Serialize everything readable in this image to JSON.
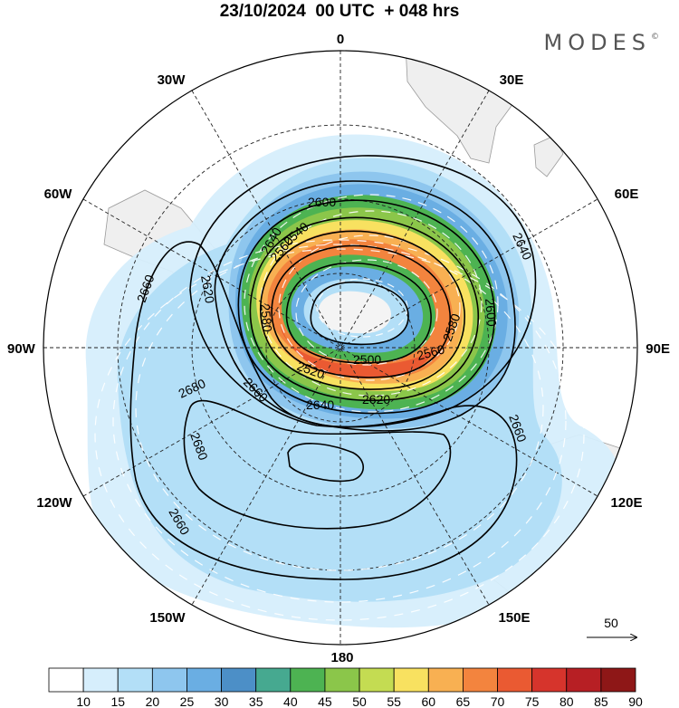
{
  "header": {
    "title": "23/10/2024  00 UTC  + 048 hrs",
    "brand": "MODES",
    "brand_mark": "©"
  },
  "map": {
    "projection": "south-polar-stereographic",
    "longitude_labels": {
      "top": "0",
      "top_right": "30E",
      "right_upper": "60E",
      "right": "90E",
      "right_lower": "120E",
      "bottom_right": "150E",
      "bottom": "180",
      "bottom_left": "150W",
      "left_lower": "120W",
      "left": "90W",
      "left_upper": "60W",
      "top_left": "30W"
    },
    "contour_labels": [
      "2500",
      "2520",
      "2540",
      "2560",
      "2580",
      "2600",
      "2620",
      "2640",
      "2660",
      "2680"
    ],
    "contour_label_instances": [
      "2600",
      "2640",
      "2620",
      "2580",
      "2560",
      "2540",
      "2660",
      "2500",
      "2520",
      "2560",
      "2580",
      "2600",
      "2640",
      "2620",
      "2680",
      "2660",
      "2680",
      "2660",
      "2660",
      "2640"
    ],
    "wind_reference_value": "50"
  },
  "colorbar": {
    "ticks": [
      "10",
      "15",
      "20",
      "25",
      "30",
      "35",
      "40",
      "45",
      "50",
      "55",
      "60",
      "65",
      "70",
      "75",
      "80",
      "85",
      "90"
    ],
    "colors": [
      "#ffffff",
      "#d6eefc",
      "#b3dff7",
      "#8ec6ee",
      "#6aaee3",
      "#4c8fc7",
      "#46a990",
      "#4db352",
      "#8bc64a",
      "#c4dc52",
      "#f8e160",
      "#f8b052",
      "#f3843e",
      "#ea5a32",
      "#d6342c",
      "#b71f24",
      "#8e1717"
    ]
  }
}
